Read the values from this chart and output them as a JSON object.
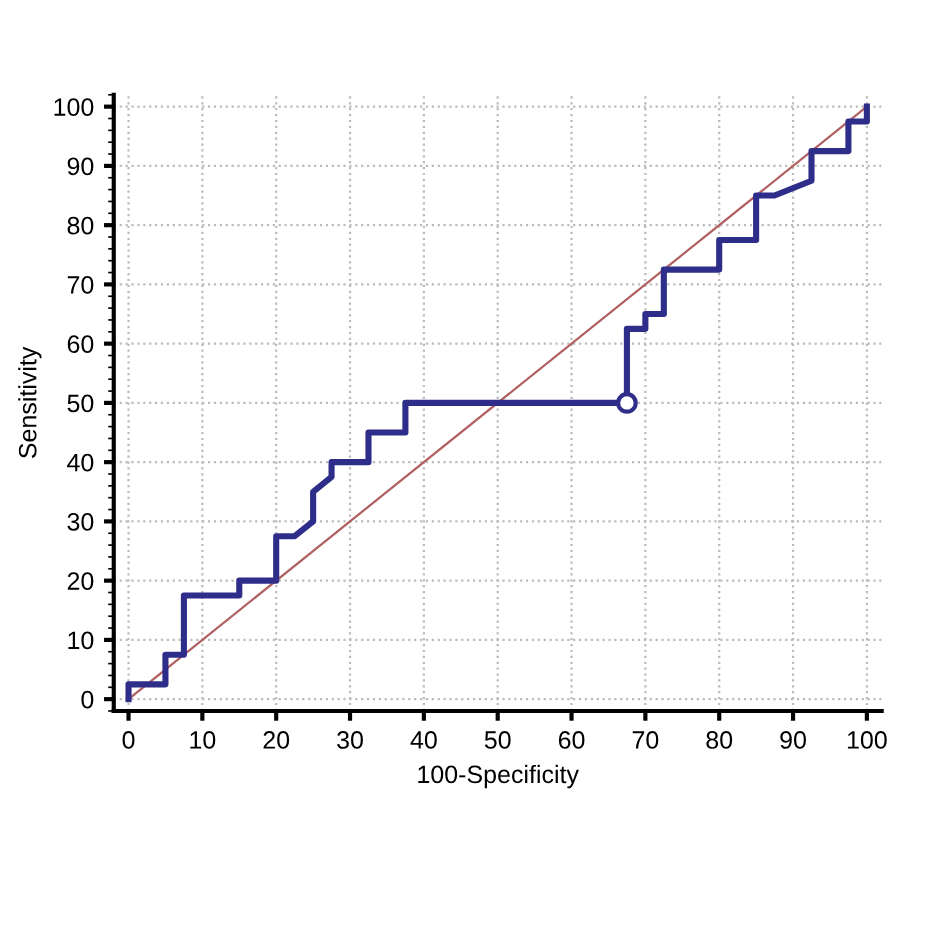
{
  "chart_data": {
    "type": "line",
    "xlabel": "100-Specificity",
    "ylabel": "Sensitivity",
    "xlim": [
      -2,
      102
    ],
    "ylim": [
      -2,
      102
    ],
    "xticks": [
      0,
      10,
      20,
      30,
      40,
      50,
      60,
      70,
      80,
      90,
      100
    ],
    "yticks": [
      0,
      10,
      20,
      30,
      40,
      50,
      60,
      70,
      80,
      90,
      100
    ],
    "grid": true,
    "series": [
      {
        "color": "#b06060",
        "x": [
          0,
          100
        ],
        "values": [
          0,
          100
        ]
      },
      {
        "color": "#2e2e8a",
        "x": [
          0,
          0,
          5,
          5,
          7.5,
          7.5,
          15,
          15,
          20,
          20,
          22.5,
          25,
          25,
          27.5,
          27.5,
          32.5,
          32.5,
          37.5,
          37.5,
          67.5,
          67.5,
          70,
          70,
          72.5,
          72.5,
          80,
          80,
          85,
          85,
          87.5,
          92.5,
          92.5,
          97.5,
          97.5,
          100,
          100
        ],
        "values": [
          0,
          2.5,
          2.5,
          7.5,
          7.5,
          17.5,
          17.5,
          20,
          20,
          27.5,
          27.5,
          30,
          35,
          37.5,
          40,
          40,
          45,
          45,
          50,
          50,
          62.5,
          62.5,
          65,
          65,
          72.5,
          72.5,
          77.5,
          77.5,
          85,
          85,
          87.5,
          92.5,
          92.5,
          97.5,
          97.5,
          100
        ]
      },
      {
        "type": "scatter",
        "color": "#2e2e8a",
        "marker": "circle",
        "x": [
          67.5
        ],
        "values": [
          50
        ]
      }
    ]
  }
}
